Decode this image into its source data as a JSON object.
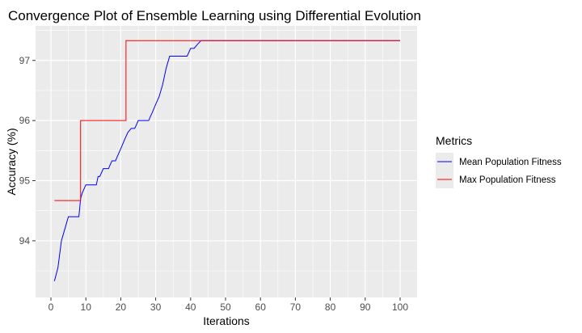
{
  "chart_data": {
    "type": "line",
    "title": "Convergence Plot of Ensemble Learning using Differential Evolution",
    "xlabel": "Iterations",
    "ylabel": "Accuracy (%)",
    "xlim": [
      0,
      100
    ],
    "ylim": [
      93.3,
      97.4
    ],
    "x_ticks": [
      0,
      10,
      20,
      30,
      40,
      50,
      60,
      70,
      80,
      90,
      100
    ],
    "y_ticks": [
      94,
      95,
      96,
      97
    ],
    "grid": true,
    "legend": {
      "title": "Metrics",
      "position": "right"
    },
    "series": [
      {
        "name": "Mean Population Fitness",
        "color": "#0000ff",
        "x": [
          1,
          2,
          3,
          4,
          5,
          5.5,
          8,
          8.5,
          9,
          10,
          11,
          13,
          13.5,
          14,
          15,
          16,
          16.5,
          17,
          17.5,
          18,
          18.5,
          19,
          20,
          21,
          22,
          23,
          24,
          24.5,
          25,
          26,
          27,
          28,
          28.5,
          29,
          30,
          31,
          32,
          33,
          34,
          35,
          36,
          37,
          38,
          39,
          40,
          41,
          42,
          43,
          100
        ],
        "y": [
          93.33,
          93.55,
          94.0,
          94.2,
          94.4,
          94.4,
          94.4,
          94.7,
          94.8,
          94.93,
          94.93,
          94.93,
          95.07,
          95.07,
          95.2,
          95.2,
          95.2,
          95.27,
          95.33,
          95.33,
          95.33,
          95.4,
          95.53,
          95.67,
          95.8,
          95.87,
          95.87,
          95.93,
          96.0,
          96.0,
          96.0,
          96.0,
          96.07,
          96.13,
          96.27,
          96.4,
          96.6,
          96.87,
          97.07,
          97.07,
          97.07,
          97.07,
          97.07,
          97.07,
          97.2,
          97.2,
          97.27,
          97.33,
          97.33
        ]
      },
      {
        "name": "Max Population Fitness",
        "color": "#ff0000",
        "x": [
          1,
          2,
          3,
          4,
          5,
          6,
          7,
          8,
          9,
          10,
          11,
          12,
          13,
          14,
          15,
          16,
          17,
          18,
          19,
          20,
          21,
          22,
          23,
          24,
          25,
          26,
          27,
          28,
          29,
          30,
          31,
          32,
          33,
          34,
          35,
          36,
          37,
          38,
          39,
          40,
          41,
          42,
          43,
          44,
          45,
          46,
          47,
          48,
          49,
          50,
          51,
          52,
          53,
          54,
          55,
          56,
          57,
          58,
          59,
          60,
          61,
          62,
          63,
          64,
          65,
          66,
          67,
          68,
          69,
          70,
          71,
          72,
          73,
          74,
          75,
          76,
          77,
          78,
          79,
          80,
          81,
          82,
          83,
          84,
          85,
          86,
          87,
          88,
          89,
          90,
          91,
          92,
          93,
          94,
          95,
          96,
          97,
          98,
          99,
          100
        ],
        "y": [
          94.67,
          94.67,
          94.67,
          94.67,
          94.67,
          94.67,
          94.67,
          94.67,
          96.0,
          96.0,
          96.0,
          96.0,
          96.0,
          96.0,
          96.0,
          96.0,
          96.0,
          96.0,
          96.0,
          96.0,
          96.0,
          97.33,
          97.33,
          97.33,
          97.33,
          97.33,
          97.33,
          97.33,
          97.33,
          97.33,
          97.33,
          97.33,
          97.33,
          97.33,
          97.33,
          97.33,
          97.33,
          97.33,
          97.33,
          97.33,
          97.33,
          97.33,
          97.33,
          97.33,
          97.33,
          97.33,
          97.33,
          97.33,
          97.33,
          97.33,
          97.33,
          97.33,
          97.33,
          97.33,
          97.33,
          97.33,
          97.33,
          97.33,
          97.33,
          97.33,
          97.33,
          97.33,
          97.33,
          97.33,
          97.33,
          97.33,
          97.33,
          97.33,
          97.33,
          97.33,
          97.33,
          97.33,
          97.33,
          97.33,
          97.33,
          97.33,
          97.33,
          97.33,
          97.33,
          97.33,
          97.33,
          97.33,
          97.33,
          97.33,
          97.33,
          97.33,
          97.33,
          97.33,
          97.33,
          97.33,
          97.33,
          97.33,
          97.33,
          97.33,
          97.33,
          97.33,
          97.33,
          97.33,
          97.33,
          97.33
        ]
      }
    ]
  }
}
